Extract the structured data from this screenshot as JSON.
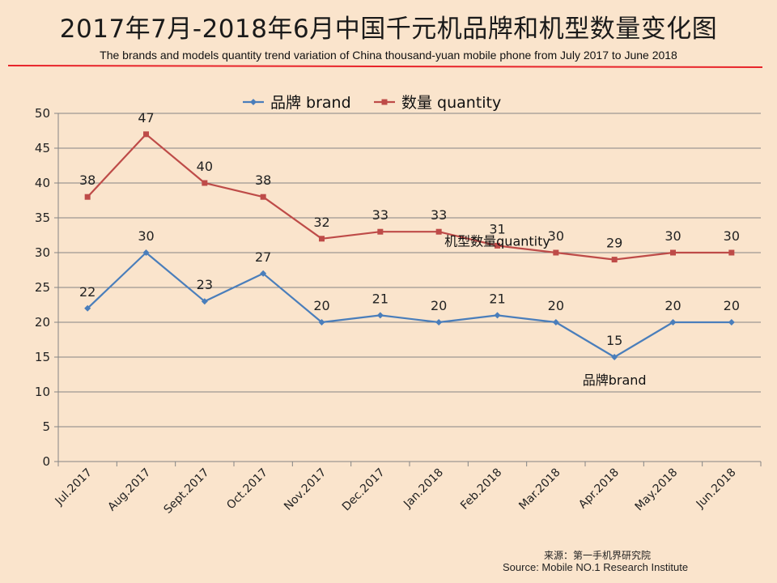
{
  "title": "2017年7月-2018年6月中国千元机品牌和机型数量变化图",
  "subtitle": "The brands and models quantity trend variation of China thousand-yuan mobile phone from  July 2017 to June 2018",
  "source": {
    "cn": "来源：第一手机界研究院",
    "en": "Source: Mobile NO.1 Research Institute"
  },
  "colors": {
    "background": "#fae4cc",
    "rule": "#e8242a",
    "brand": "#4a7ebb",
    "quantity": "#be4b48",
    "grid": "#858585"
  },
  "chart_data": {
    "type": "line",
    "categories": [
      "Jul.2017",
      "Aug.2017",
      "Sept.2017",
      "Oct.2017",
      "Nov.2017",
      "Dec.2017",
      "Jan.2018",
      "Feb.2018",
      "Mar.2018",
      "Apr.2018",
      "May.2018",
      "Jun.2018"
    ],
    "series": [
      {
        "name": "品牌 brand",
        "marker": "diamond",
        "values": [
          22,
          30,
          23,
          27,
          20,
          21,
          20,
          21,
          20,
          15,
          20,
          20
        ]
      },
      {
        "name": "数量 quantity",
        "marker": "square",
        "values": [
          38,
          47,
          40,
          38,
          32,
          33,
          33,
          31,
          30,
          29,
          30,
          30
        ]
      }
    ],
    "ylim": [
      0,
      50
    ],
    "yticks": [
      0,
      5,
      10,
      15,
      20,
      25,
      30,
      35,
      40,
      45,
      50
    ],
    "grid": true,
    "legend": "top-center",
    "annotations": [
      {
        "text": "机型数量quantity",
        "series": 1,
        "category": "Feb.2018"
      },
      {
        "text": "品牌brand",
        "series": 0,
        "category": "Apr.2018"
      }
    ]
  }
}
